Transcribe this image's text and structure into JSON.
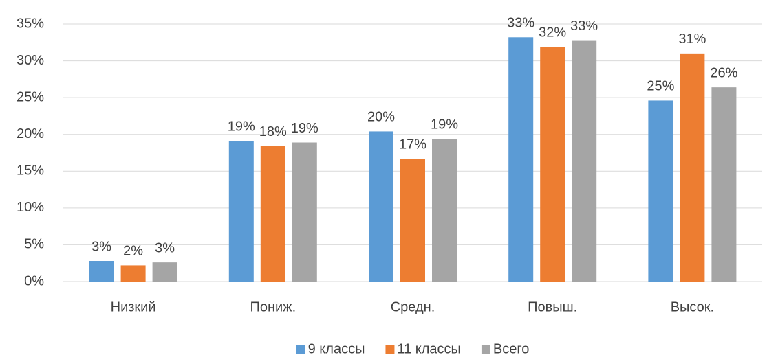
{
  "chart_data": {
    "type": "bar",
    "categories": [
      "Низкий",
      "Пониж.",
      "Средн.",
      "Повыш.",
      "Высок."
    ],
    "series": [
      {
        "name": "9 классы",
        "color": "#5b9bd5",
        "values": [
          2.8,
          19.1,
          20.4,
          33.2,
          24.6
        ],
        "value_labels": [
          "3%",
          "19%",
          "20%",
          "33%",
          "25%"
        ]
      },
      {
        "name": "11 классы",
        "color": "#ed7d31",
        "values": [
          2.2,
          18.4,
          16.7,
          31.9,
          31.0
        ],
        "value_labels": [
          "2%",
          "18%",
          "17%",
          "32%",
          "31%"
        ]
      },
      {
        "name": "Всего",
        "color": "#a5a5a5",
        "values": [
          2.6,
          18.9,
          19.4,
          32.8,
          26.4
        ],
        "value_labels": [
          "3%",
          "19%",
          "19%",
          "33%",
          "26%"
        ]
      }
    ],
    "ylim": [
      0,
      35
    ],
    "yticks": [
      {
        "value": 0,
        "label": "0%"
      },
      {
        "value": 5,
        "label": "5%"
      },
      {
        "value": 10,
        "label": "10%"
      },
      {
        "value": 15,
        "label": "15%"
      },
      {
        "value": 20,
        "label": "20%"
      },
      {
        "value": 25,
        "label": "25%"
      },
      {
        "value": 30,
        "label": "30%"
      },
      {
        "value": 35,
        "label": "35%"
      }
    ],
    "grid": true,
    "legend": "bottom"
  }
}
